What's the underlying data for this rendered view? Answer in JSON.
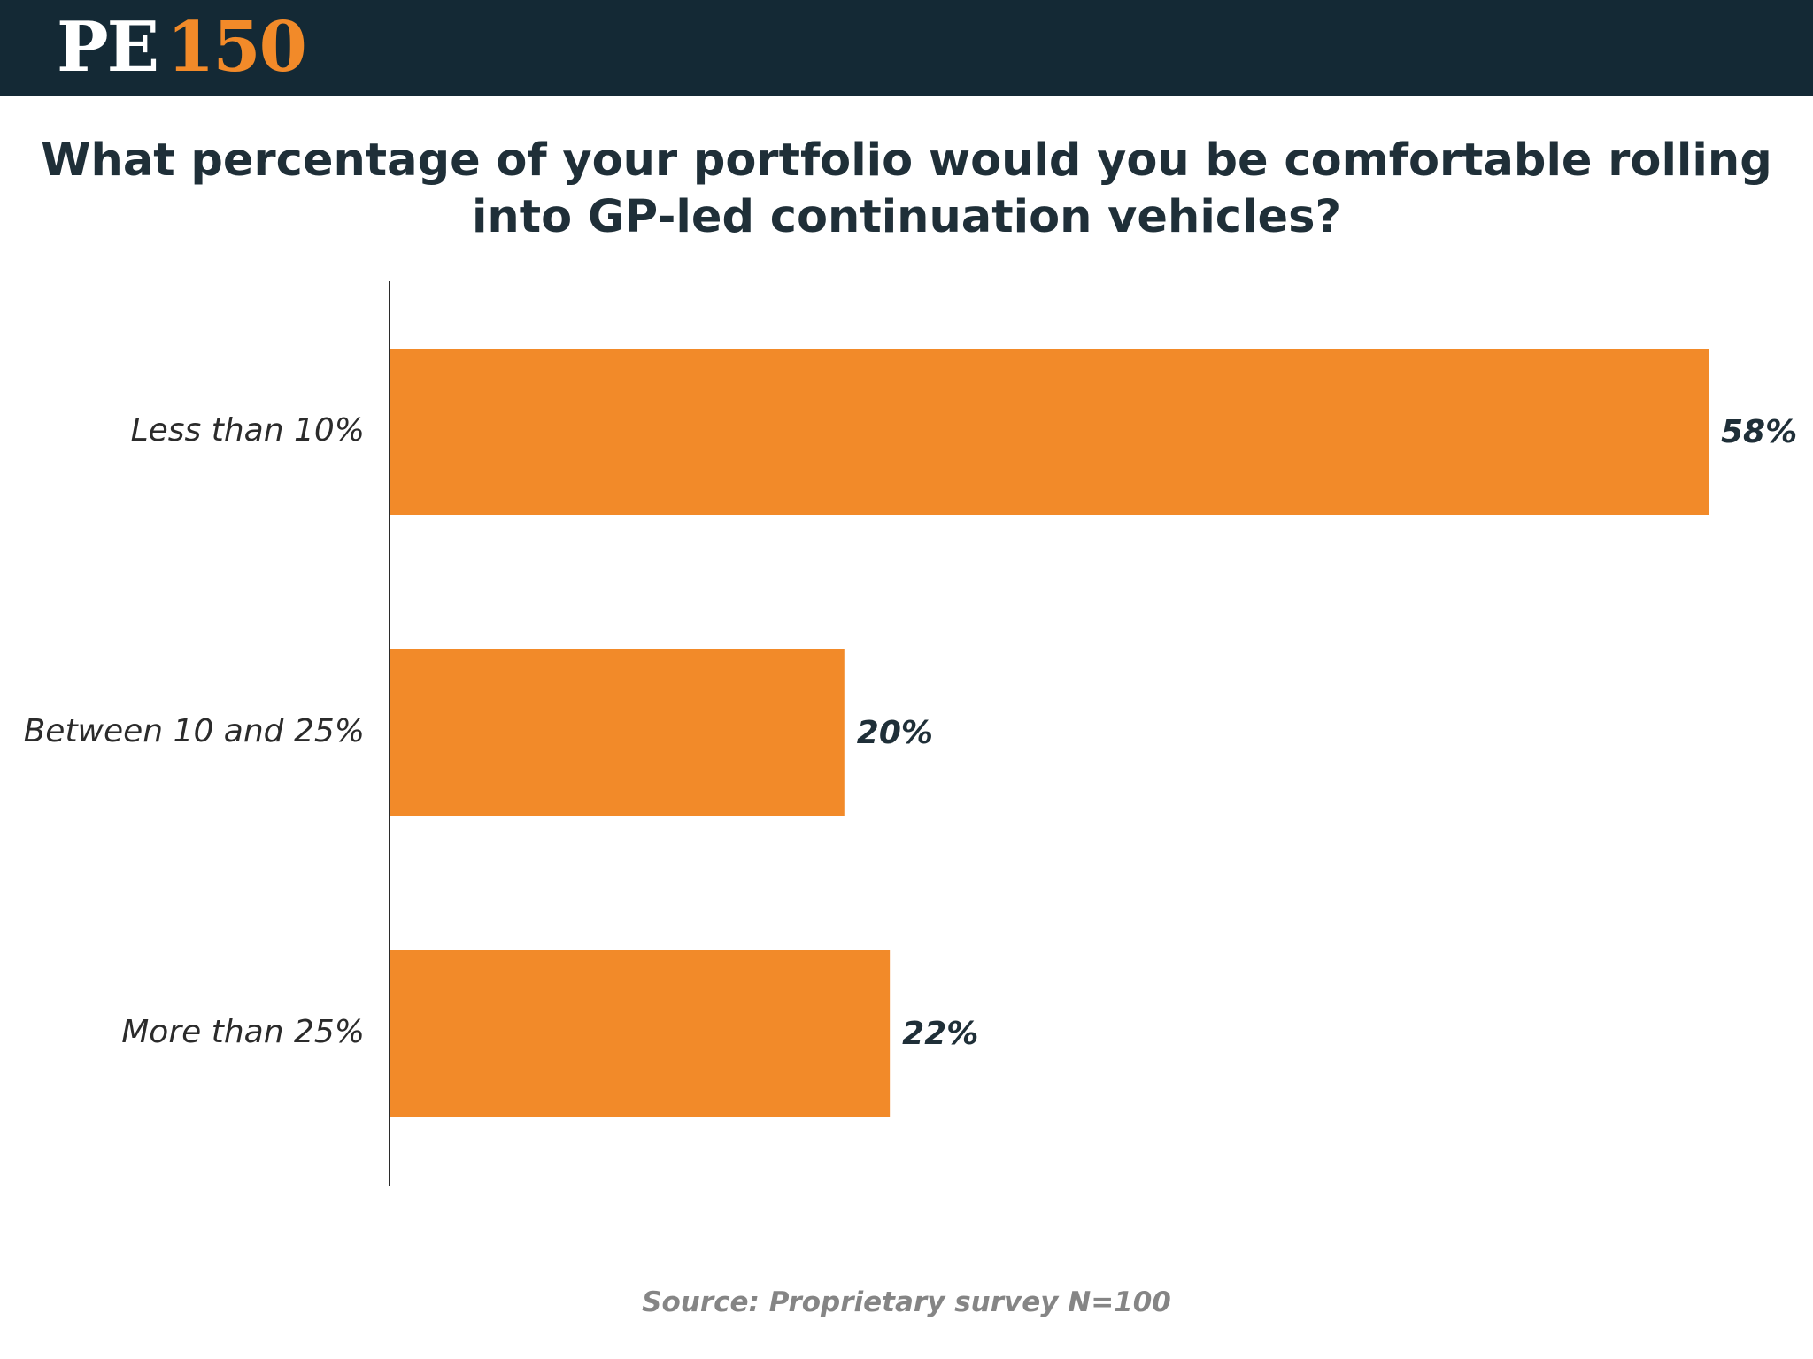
{
  "header": {
    "logo_prefix": "PE",
    "logo_number": "150",
    "logo_prefix_color": "#ffffff",
    "logo_number_color": "#f28a29",
    "background_color": "#142935"
  },
  "chart_data": {
    "type": "bar",
    "orientation": "horizontal",
    "title": "What percentage of your portfolio would you be comfortable rolling into GP-led continuation vehicles?",
    "categories": [
      "Less than 10%",
      "Between 10 and 25%",
      "More than 25%"
    ],
    "values": [
      58,
      20,
      22
    ],
    "value_labels": [
      "58%",
      "20%",
      "22%"
    ],
    "unit": "%",
    "xlim": [
      0,
      58
    ],
    "xlabel": "",
    "ylabel": "",
    "grid": false,
    "legend": "none",
    "bar_color": "#f28a29",
    "source": "Source: Proprietary survey N=100"
  }
}
